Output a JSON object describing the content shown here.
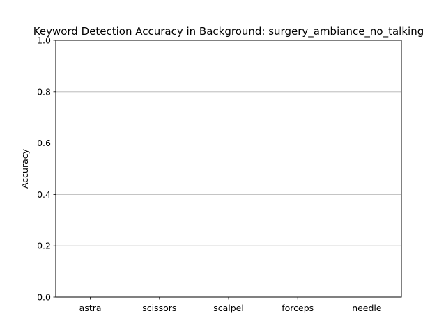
{
  "chart_data": {
    "type": "bar",
    "title": "Keyword Detection Accuracy in Background: surgery_ambiance_no_talking",
    "xlabel": "",
    "ylabel": "Accuracy",
    "categories": [
      "astra",
      "scissors",
      "scalpel",
      "forceps",
      "needle"
    ],
    "values": [
      0,
      0,
      0,
      0,
      0
    ],
    "ylim": [
      0,
      1
    ],
    "yticks": [
      "0.0",
      "0.2",
      "0.4",
      "0.6",
      "0.8",
      "1.0"
    ],
    "grid": "y-axis horizontal lines",
    "bar_color": "#1f77b4"
  }
}
